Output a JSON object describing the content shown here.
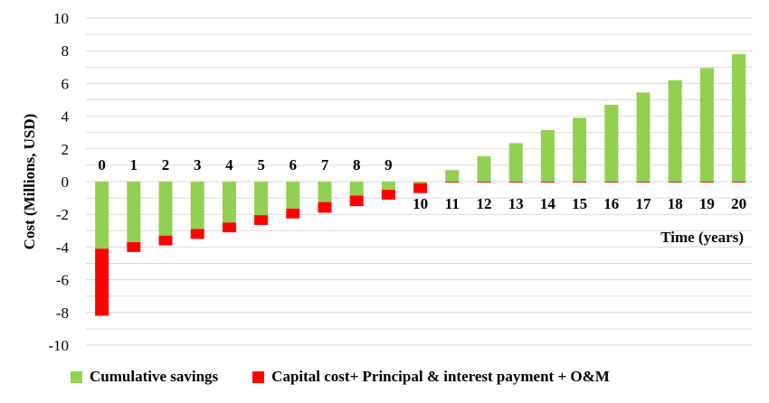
{
  "chart_data": {
    "type": "bar",
    "stacked": true,
    "xlabel": "Time (years)",
    "ylabel": "Cost  (Millions, USD)",
    "ylim": [
      -10,
      10
    ],
    "yticks": [
      10,
      8,
      6,
      4,
      2,
      0,
      -2,
      -4,
      -6,
      -8,
      -10
    ],
    "grid": true,
    "legend_position": "bottom",
    "categories": [
      "0",
      "1",
      "2",
      "3",
      "4",
      "5",
      "6",
      "7",
      "8",
      "9",
      "10",
      "11",
      "12",
      "13",
      "14",
      "15",
      "16",
      "17",
      "18",
      "19",
      "20"
    ],
    "series": [
      {
        "name": "Cumulative savings",
        "color": "#92d050",
        "values": [
          -4.1,
          -3.7,
          -3.3,
          -2.9,
          -2.5,
          -2.05,
          -1.65,
          -1.25,
          -0.85,
          -0.5,
          -0.1,
          0.7,
          1.55,
          2.35,
          3.15,
          3.9,
          4.7,
          5.45,
          6.2,
          6.95,
          7.8
        ]
      },
      {
        "name": "Capital cost+ Principal & interest payment + O&M",
        "color": "#ff0000",
        "values": [
          -4.1,
          -0.6,
          -0.6,
          -0.6,
          -0.6,
          -0.6,
          -0.6,
          -0.65,
          -0.65,
          -0.6,
          -0.6,
          -0.05,
          -0.05,
          -0.05,
          -0.05,
          -0.05,
          -0.05,
          -0.05,
          -0.05,
          -0.05,
          -0.05
        ]
      }
    ]
  }
}
